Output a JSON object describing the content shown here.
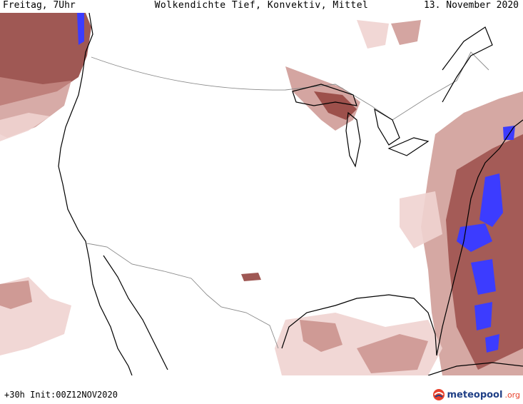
{
  "header": {
    "left": "Freitag, 7Uhr",
    "title": "Wolkendichte  Tief, Konvektiv, Mittel",
    "right": "13. November 2020"
  },
  "footer": {
    "run": "+30h Init:00Z12NOV2020"
  },
  "logo": {
    "brand_main": "meteopool",
    "brand_suffix": ".org",
    "icon": "meteopool-globe-icon"
  },
  "colors": {
    "cloud_light": "#efd3d0",
    "cloud_mid": "#c98f89",
    "cloud_dark": "#8e3b36",
    "convective": "#3c3cff",
    "coastline": "#000000",
    "border": "#8a8a8a"
  }
}
